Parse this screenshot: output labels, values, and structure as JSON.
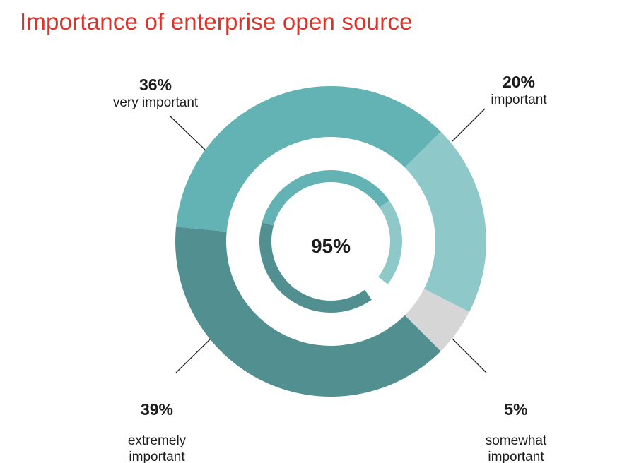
{
  "chart_data": {
    "type": "pie",
    "title": "Importance of enterprise open source",
    "center_label": "95%",
    "slices": [
      {
        "pct_text": "20%",
        "label": "important",
        "value": 20,
        "color": "#8fc8c9"
      },
      {
        "pct_text": "5%",
        "label": "somewhat\nimportant",
        "value": 5,
        "color": "#d6d6d6"
      },
      {
        "pct_text": "39%",
        "label": "extremely\nimportant",
        "value": 39,
        "color": "#528f90"
      },
      {
        "pct_text": "36%",
        "label": "very important",
        "value": 36,
        "color": "#63b2b4"
      }
    ],
    "inner_ring": [
      {
        "value": 39,
        "color": "#528f90"
      },
      {
        "value": 36,
        "color": "#63b2b4"
      },
      {
        "value": 20,
        "color": "#8fc8c9"
      }
    ]
  }
}
